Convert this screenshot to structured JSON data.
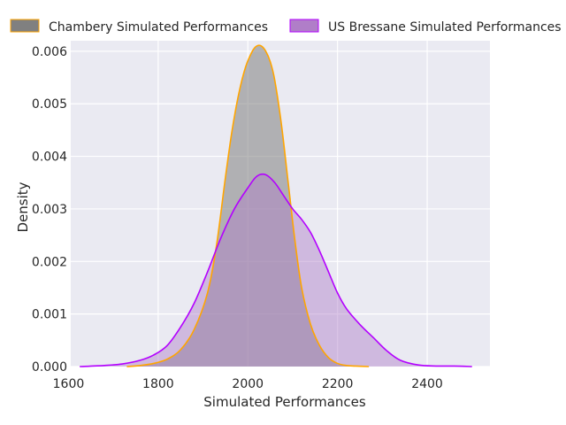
{
  "chart_data": {
    "type": "area",
    "title": "",
    "xlabel": "Simulated Performances",
    "ylabel": "Density",
    "xlim": [
      1605,
      2540
    ],
    "ylim": [
      0,
      0.0062
    ],
    "x_ticks": [
      1600,
      1800,
      2000,
      2200,
      2400
    ],
    "y_ticks": [
      0.0,
      0.001,
      0.002,
      0.003,
      0.004,
      0.005,
      0.006
    ],
    "x_tick_labels": [
      "1600",
      "1800",
      "2000",
      "2200",
      "2400"
    ],
    "y_tick_labels": [
      "0.000",
      "0.001",
      "0.002",
      "0.003",
      "0.004",
      "0.005",
      "0.006"
    ],
    "grid": true,
    "legend_position": "top",
    "series": [
      {
        "name": "Chambery Simulated Performances",
        "line_color": "#ffa500",
        "fill_color": "#808080",
        "fill_opacity": 0.55,
        "x": [
          1730,
          1760,
          1790,
          1820,
          1850,
          1880,
          1910,
          1930,
          1950,
          1965,
          1980,
          1995,
          2010,
          2020,
          2030,
          2040,
          2050,
          2060,
          2075,
          2090,
          2105,
          2120,
          2140,
          2160,
          2180,
          2200,
          2220,
          2240,
          2270
        ],
        "y": [
          0.0,
          2e-05,
          6e-05,
          0.00014,
          0.00032,
          0.0007,
          0.0014,
          0.0023,
          0.0036,
          0.0045,
          0.0052,
          0.0057,
          0.006,
          0.0061,
          0.0061,
          0.006,
          0.0058,
          0.00545,
          0.0046,
          0.0035,
          0.0024,
          0.0015,
          0.0008,
          0.0004,
          0.00017,
          6e-05,
          2e-05,
          1e-05,
          0.0
        ]
      },
      {
        "name": "US Bressane Simulated Performances",
        "line_color": "#b300ff",
        "fill_color": "#b07ec8",
        "fill_opacity": 0.45,
        "x": [
          1625,
          1680,
          1720,
          1760,
          1790,
          1820,
          1850,
          1880,
          1910,
          1940,
          1970,
          2000,
          2020,
          2040,
          2060,
          2080,
          2100,
          2120,
          2140,
          2160,
          2180,
          2200,
          2220,
          2250,
          2280,
          2310,
          2340,
          2380,
          2420,
          2460,
          2500
        ],
        "y": [
          0.0,
          2e-05,
          5e-05,
          0.00012,
          0.00022,
          0.0004,
          0.00075,
          0.0012,
          0.0018,
          0.00245,
          0.003,
          0.0034,
          0.00362,
          0.00365,
          0.0035,
          0.00325,
          0.003,
          0.0028,
          0.00255,
          0.0022,
          0.0018,
          0.0014,
          0.0011,
          0.0008,
          0.00055,
          0.0003,
          0.00012,
          3e-05,
          1e-05,
          1e-05,
          0.0
        ]
      }
    ]
  }
}
